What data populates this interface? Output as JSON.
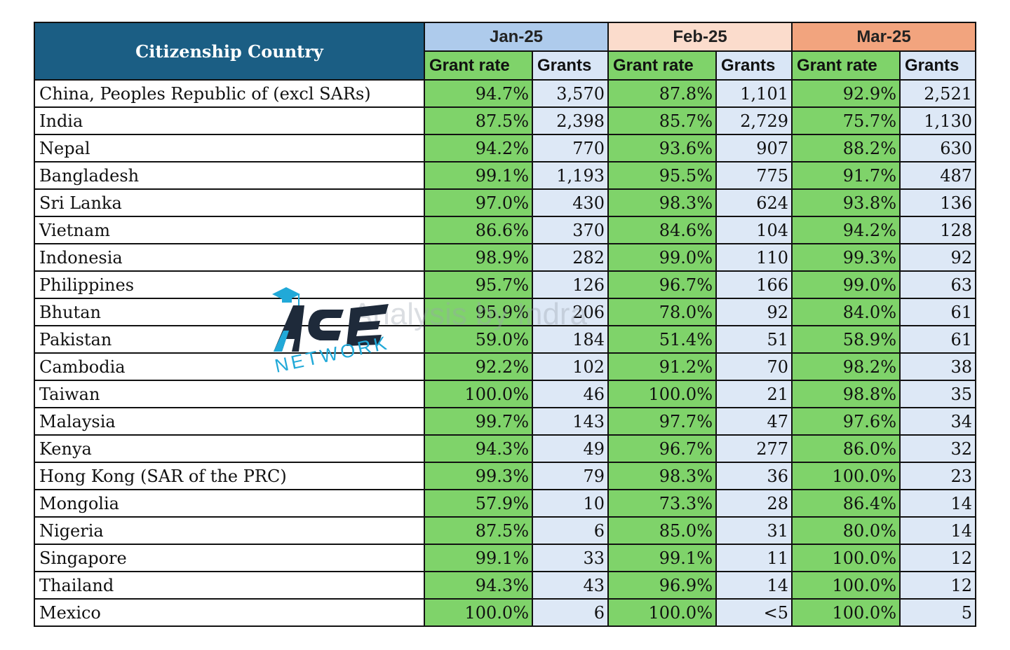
{
  "header": {
    "country_label": "Citizenship Country",
    "months": [
      "Jan-25",
      "Feb-25",
      "Mar-25"
    ],
    "sub_rate": "Grant rate",
    "sub_grants": "Grants"
  },
  "rows": [
    {
      "country": "China, Peoples Republic of (excl SARs)",
      "vals": [
        "94.7%",
        "3,570",
        "87.8%",
        "1,101",
        "92.9%",
        "2,521"
      ]
    },
    {
      "country": "India",
      "vals": [
        "87.5%",
        "2,398",
        "85.7%",
        "2,729",
        "75.7%",
        "1,130"
      ]
    },
    {
      "country": "Nepal",
      "vals": [
        "94.2%",
        "770",
        "93.6%",
        "907",
        "88.2%",
        "630"
      ]
    },
    {
      "country": "Bangladesh",
      "vals": [
        "99.1%",
        "1,193",
        "95.5%",
        "775",
        "91.7%",
        "487"
      ]
    },
    {
      "country": "Sri Lanka",
      "vals": [
        "97.0%",
        "430",
        "98.3%",
        "624",
        "93.8%",
        "136"
      ]
    },
    {
      "country": "Vietnam",
      "vals": [
        "86.6%",
        "370",
        "84.6%",
        "104",
        "94.2%",
        "128"
      ]
    },
    {
      "country": "Indonesia",
      "vals": [
        "98.9%",
        "282",
        "99.0%",
        "110",
        "99.3%",
        "92"
      ]
    },
    {
      "country": "Philippines",
      "vals": [
        "95.7%",
        "126",
        "96.7%",
        "166",
        "99.0%",
        "63"
      ]
    },
    {
      "country": "Bhutan",
      "vals": [
        "95.9%",
        "206",
        "78.0%",
        "92",
        "84.0%",
        "61"
      ]
    },
    {
      "country": "Pakistan",
      "vals": [
        "59.0%",
        "184",
        "51.4%",
        "51",
        "58.9%",
        "61"
      ]
    },
    {
      "country": "Cambodia",
      "vals": [
        "92.2%",
        "102",
        "91.2%",
        "70",
        "98.2%",
        "38"
      ]
    },
    {
      "country": "Taiwan",
      "vals": [
        "100.0%",
        "46",
        "100.0%",
        "21",
        "98.8%",
        "35"
      ]
    },
    {
      "country": "Malaysia",
      "vals": [
        "99.7%",
        "143",
        "97.7%",
        "47",
        "97.6%",
        "34"
      ]
    },
    {
      "country": "Kenya",
      "vals": [
        "94.3%",
        "49",
        "96.7%",
        "277",
        "86.0%",
        "32"
      ]
    },
    {
      "country": "Hong Kong (SAR of the PRC)",
      "vals": [
        "99.3%",
        "79",
        "98.3%",
        "36",
        "100.0%",
        "23"
      ]
    },
    {
      "country": "Mongolia",
      "vals": [
        "57.9%",
        "10",
        "73.3%",
        "28",
        "86.4%",
        "14"
      ]
    },
    {
      "country": "Nigeria",
      "vals": [
        "87.5%",
        "6",
        "85.0%",
        "31",
        "80.0%",
        "14"
      ]
    },
    {
      "country": "Singapore",
      "vals": [
        "99.1%",
        "33",
        "99.1%",
        "11",
        "100.0%",
        "12"
      ]
    },
    {
      "country": "Thailand",
      "vals": [
        "94.3%",
        "43",
        "96.9%",
        "14",
        "100.0%",
        "12"
      ]
    },
    {
      "country": "Mexico",
      "vals": [
        "100.0%",
        "6",
        "100.0%",
        "<5",
        "100.0%",
        "5"
      ]
    }
  ],
  "watermark": {
    "logo_word": "ACE",
    "logo_sub": "NETWORK",
    "text": "Analysis by Indra"
  },
  "colors": {
    "header_blue": "#1b5e84",
    "jan": "#aecbec",
    "feb": "#fbdccc",
    "mar": "#f2a47e",
    "rate_green": "#7fd36a",
    "grants_blue": "#dde8f6",
    "logo_cyan": "#21a9d8"
  }
}
